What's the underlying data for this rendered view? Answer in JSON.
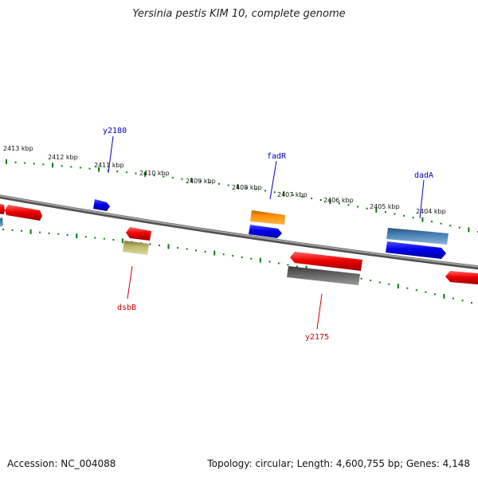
{
  "title": "Yersinia pestis KIM 10, complete genome",
  "footer": {
    "accession": "Accession: NC_004088",
    "info": "Topology: circular; Length: 4,600,755 bp; Genes: 4,148"
  },
  "ruler": {
    "tick_labels": [
      "2413 kbp",
      "2412 kbp",
      "2411 kbp",
      "2410 kbp",
      "2409 kbp",
      "2408 kbp",
      "2407 kbp",
      "2406 kbp",
      "2405 kbp",
      "2404 kbp"
    ],
    "tick_color": "#008000"
  },
  "backbone_color": "#808080",
  "gene_labels": {
    "y2180": "y2180",
    "fadR": "fadR",
    "dadA": "dadA",
    "dsbB": "dsbB",
    "y2175": "y2175"
  },
  "colors": {
    "red": "#ee0000",
    "blue": "#0000ee",
    "orange": "#ff8c00",
    "steelblue": "#4682b4",
    "khaki": "#bdb76b",
    "gray": "#606060",
    "label_blue": "#0000cc",
    "label_red": "#cc0000"
  }
}
